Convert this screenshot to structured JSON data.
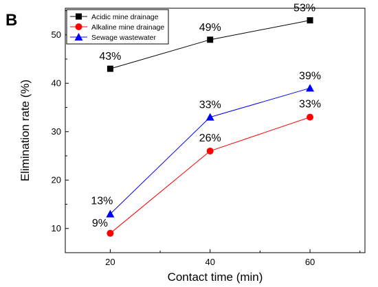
{
  "panel_label": "B",
  "chart_data": {
    "type": "line",
    "xlabel": "Contact time (min)",
    "ylabel": "Elimination rate (%)",
    "x": [
      20,
      40,
      60
    ],
    "x_ticks": [
      20,
      40,
      60
    ],
    "y_ticks": [
      10,
      20,
      30,
      40,
      50
    ],
    "xlim": [
      11,
      71
    ],
    "ylim": [
      5,
      55.5
    ],
    "grid": false,
    "legend_position": "top-left",
    "series": [
      {
        "name": "Acidic mine drainage",
        "values": [
          43,
          49,
          53
        ],
        "labels": [
          "43%",
          "49%",
          "53%"
        ],
        "color": "#000000",
        "marker": "square"
      },
      {
        "name": "Alkaline mine drainage",
        "values": [
          9,
          26,
          33
        ],
        "labels": [
          "9%",
          "26%",
          "33%"
        ],
        "color": "#ff0000",
        "marker": "circle"
      },
      {
        "name": "Sewage wastewater",
        "values": [
          13,
          33,
          39
        ],
        "labels": [
          "13%",
          "33%",
          "39%"
        ],
        "color": "#0000ff",
        "marker": "triangle"
      }
    ]
  }
}
